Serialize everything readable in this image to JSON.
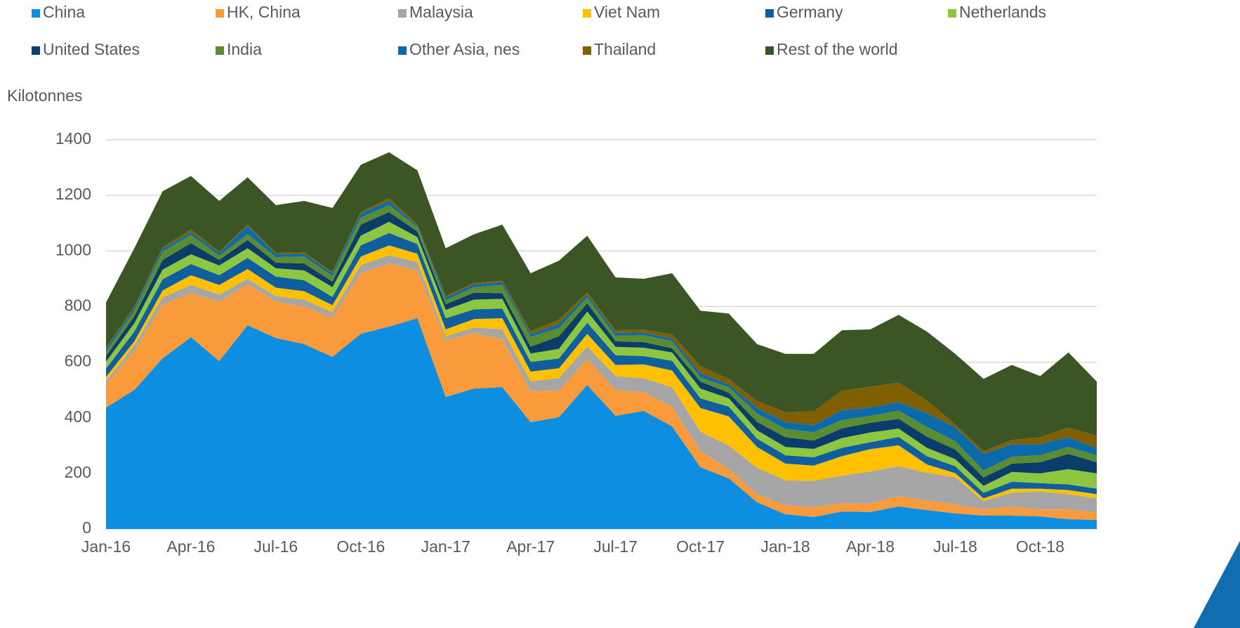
{
  "chart_data": {
    "type": "stacked_area",
    "y_label": "Kilotonnes",
    "categories": [
      "Jan-16",
      null,
      null,
      "Apr-16",
      null,
      null,
      "Jul-16",
      null,
      null,
      "Oct-16",
      null,
      null,
      "Jan-17",
      null,
      null,
      "Apr-17",
      null,
      null,
      "Jul-17",
      null,
      null,
      "Oct-17",
      null,
      null,
      "Jan-18",
      null,
      null,
      "Apr-18",
      null,
      null,
      "Jul-18",
      null,
      null,
      "Oct-18",
      null,
      null
    ],
    "ylim": [
      0,
      1400
    ],
    "yticks": [
      0,
      200,
      400,
      600,
      800,
      1000,
      1200,
      1400
    ],
    "grid": true,
    "legend": "top",
    "series": [
      {
        "name": "China",
        "color": "#0d8ee0",
        "values": [
          437,
          500,
          614,
          690,
          604,
          733,
          687,
          665,
          619,
          702,
          728,
          758,
          475,
          505,
          510,
          384,
          402,
          518,
          407,
          425,
          369,
          222,
          182,
          96,
          53,
          43,
          63,
          61,
          81,
          68,
          56,
          48,
          48,
          45,
          35,
          33
        ]
      },
      {
        "name": "HK, China",
        "color": "#f99b3a",
        "values": [
          83,
          140,
          194,
          158,
          214,
          147,
          131,
          135,
          141,
          218,
          227,
          172,
          203,
          200,
          173,
          112,
          96,
          94,
          93,
          67,
          71,
          58,
          33,
          29,
          32,
          35,
          29,
          31,
          37,
          34,
          32,
          22,
          32,
          25,
          35,
          27
        ]
      },
      {
        "name": "Malaysia",
        "color": "#a6a6a6",
        "values": [
          12,
          20,
          25,
          30,
          25,
          20,
          20,
          25,
          20,
          30,
          30,
          30,
          15,
          20,
          35,
          35,
          45,
          45,
          50,
          50,
          70,
          70,
          85,
          95,
          90,
          95,
          100,
          115,
          108,
          100,
          98,
          30,
          50,
          65,
          55,
          50
        ]
      },
      {
        "name": "Viet Nam",
        "color": "#ffc000",
        "values": [
          15,
          15,
          25,
          35,
          35,
          35,
          30,
          30,
          25,
          30,
          35,
          30,
          25,
          30,
          40,
          35,
          35,
          45,
          40,
          50,
          60,
          85,
          105,
          75,
          60,
          55,
          70,
          80,
          75,
          30,
          15,
          10,
          15,
          10,
          15,
          15
        ]
      },
      {
        "name": "Germany",
        "color": "#0f5f9e",
        "values": [
          30,
          35,
          40,
          40,
          35,
          40,
          40,
          40,
          30,
          40,
          45,
          35,
          40,
          35,
          35,
          35,
          35,
          40,
          35,
          30,
          35,
          35,
          35,
          30,
          30,
          30,
          30,
          25,
          30,
          30,
          25,
          20,
          25,
          20,
          20,
          20
        ]
      },
      {
        "name": "Netherlands",
        "color": "#8dc63f",
        "values": [
          25,
          30,
          35,
          35,
          35,
          35,
          30,
          35,
          35,
          35,
          40,
          25,
          30,
          35,
          35,
          30,
          35,
          40,
          30,
          30,
          30,
          35,
          30,
          30,
          30,
          30,
          35,
          35,
          30,
          30,
          25,
          25,
          35,
          35,
          55,
          55
        ]
      },
      {
        "name": "United States",
        "color": "#0b3d6b",
        "values": [
          20,
          25,
          35,
          40,
          20,
          30,
          20,
          25,
          20,
          40,
          35,
          20,
          20,
          25,
          20,
          25,
          45,
          30,
          20,
          20,
          15,
          25,
          20,
          30,
          35,
          30,
          35,
          35,
          35,
          40,
          35,
          30,
          30,
          40,
          55,
          40
        ]
      },
      {
        "name": "India",
        "color": "#5b8c2f",
        "values": [
          15,
          20,
          30,
          30,
          15,
          20,
          20,
          25,
          20,
          25,
          25,
          15,
          15,
          20,
          30,
          35,
          30,
          20,
          20,
          25,
          25,
          15,
          20,
          30,
          30,
          30,
          30,
          25,
          30,
          35,
          30,
          25,
          25,
          25,
          25,
          25
        ]
      },
      {
        "name": "Other Asia, nes",
        "color": "#0b6aaa",
        "values": [
          10,
          10,
          10,
          10,
          10,
          30,
          10,
          10,
          10,
          15,
          15,
          5,
          10,
          10,
          10,
          10,
          15,
          10,
          10,
          10,
          10,
          15,
          10,
          20,
          25,
          25,
          35,
          30,
          30,
          50,
          50,
          60,
          45,
          40,
          35,
          25
        ]
      },
      {
        "name": "Thailand",
        "color": "#7f5f00",
        "values": [
          5,
          5,
          5,
          10,
          5,
          5,
          5,
          5,
          5,
          5,
          10,
          5,
          5,
          5,
          5,
          10,
          15,
          10,
          10,
          10,
          15,
          25,
          20,
          25,
          35,
          50,
          70,
          75,
          70,
          45,
          10,
          10,
          15,
          25,
          35,
          45
        ]
      },
      {
        "name": "Rest of the world",
        "color": "#3b5524",
        "values": [
          163,
          210,
          202,
          192,
          182,
          170,
          172,
          185,
          230,
          170,
          165,
          195,
          172,
          175,
          202,
          209,
          212,
          203,
          190,
          183,
          220,
          200,
          235,
          205,
          210,
          207,
          218,
          206,
          244,
          248,
          254,
          260,
          270,
          220,
          270,
          195
        ]
      }
    ]
  }
}
